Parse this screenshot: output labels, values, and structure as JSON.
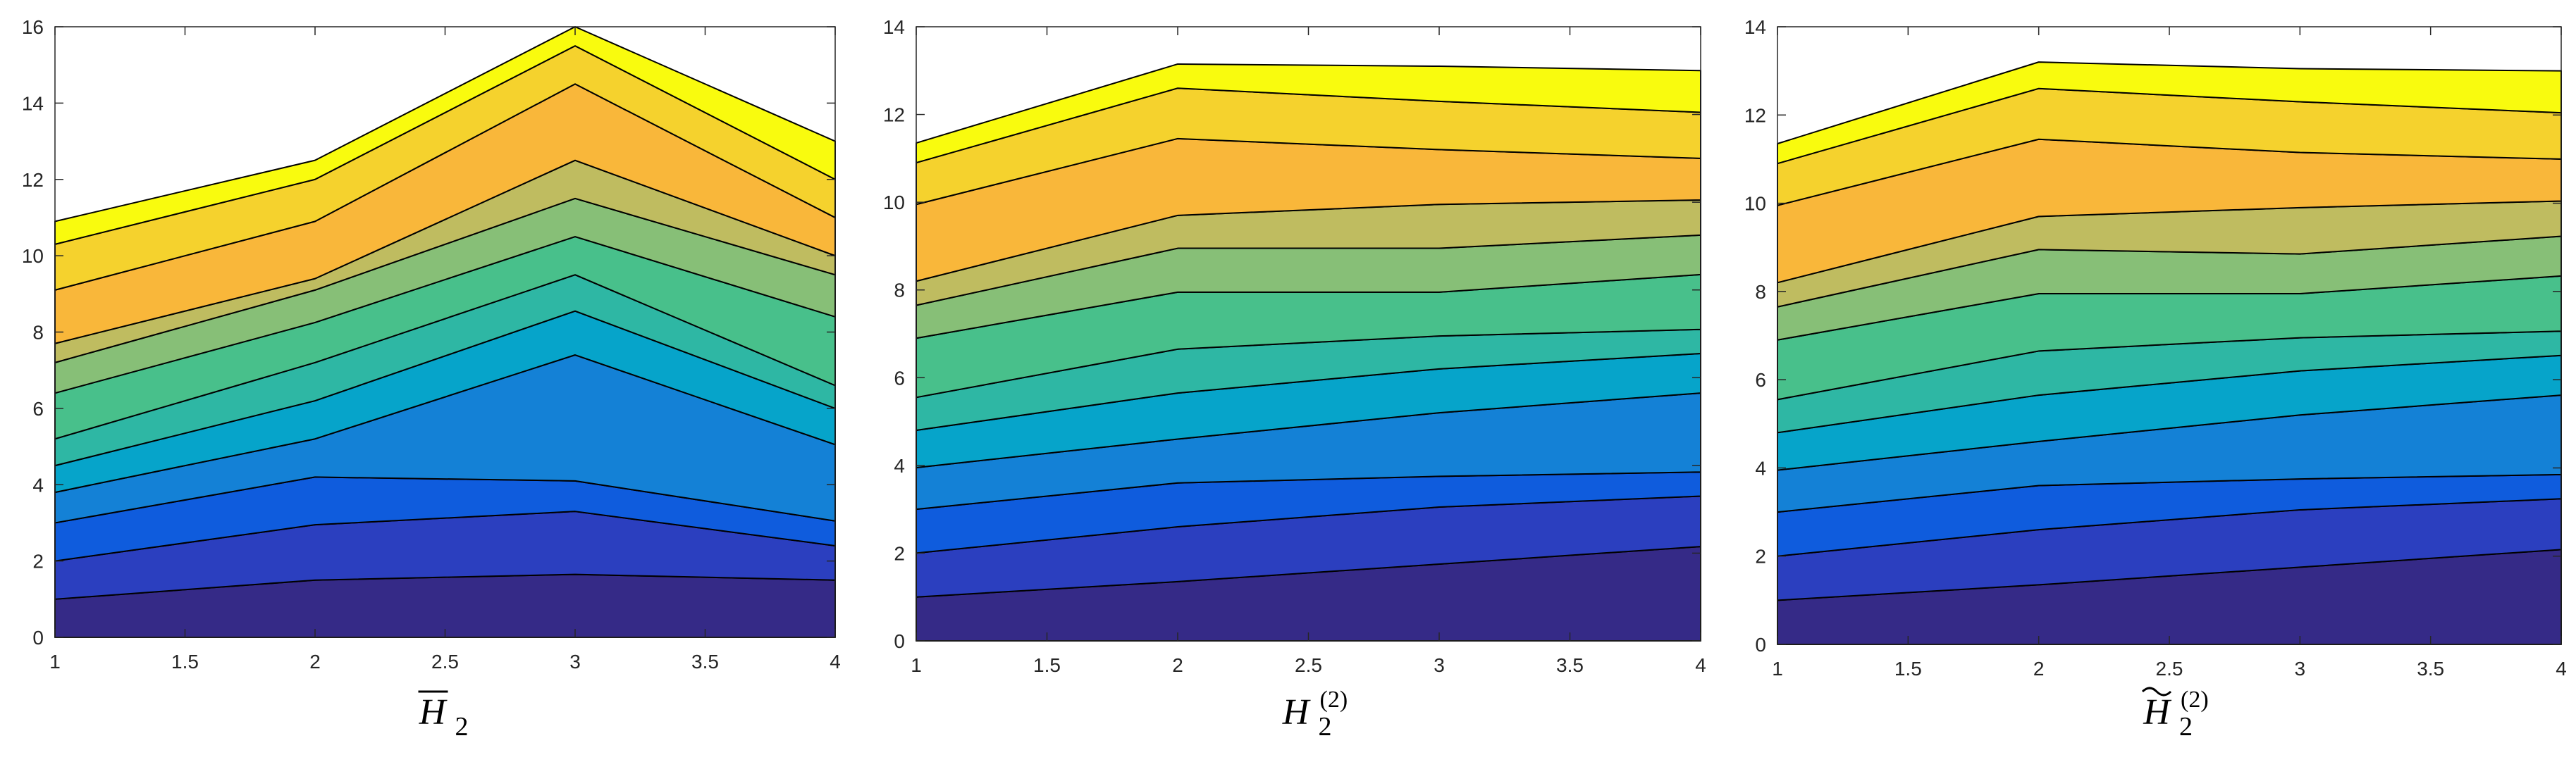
{
  "chart_data": [
    {
      "type": "area",
      "stacked": true,
      "xlabel": "H̄₂",
      "x": [
        1,
        2,
        3,
        4
      ],
      "xlim": [
        1,
        4
      ],
      "ylim": [
        0,
        16
      ],
      "xticks": [
        "1",
        "1.5",
        "2",
        "2.5",
        "3",
        "3.5",
        "4"
      ],
      "yticks": [
        "0",
        "2",
        "4",
        "6",
        "8",
        "10",
        "12",
        "14",
        "16"
      ],
      "grid": false,
      "legend": "none",
      "cumulative_boundaries": [
        [
          1.0,
          1.5,
          1.65,
          1.5
        ],
        [
          2.0,
          2.95,
          3.3,
          2.4
        ],
        [
          3.0,
          4.2,
          4.1,
          3.05
        ],
        [
          3.8,
          5.2,
          7.4,
          5.05
        ],
        [
          4.5,
          6.2,
          8.55,
          6.0
        ],
        [
          5.2,
          7.2,
          9.5,
          6.6
        ],
        [
          6.4,
          8.25,
          10.5,
          8.4
        ],
        [
          7.2,
          9.1,
          11.5,
          9.5
        ],
        [
          7.7,
          9.4,
          12.5,
          10.0
        ],
        [
          9.1,
          10.9,
          14.5,
          11.0
        ],
        [
          10.3,
          12.0,
          15.5,
          12.0
        ],
        [
          10.9,
          12.5,
          16.0,
          13.0
        ]
      ],
      "colors": [
        "#352a87",
        "#2b3fbf",
        "#0f5cdd",
        "#1481d6",
        "#06a4ca",
        "#2eb7a4",
        "#48c08b",
        "#87bf77",
        "#bfbc60",
        "#f9b73a",
        "#f5d22d",
        "#f9fb0e"
      ]
    },
    {
      "type": "area",
      "stacked": true,
      "xlabel": "H₂⁽²⁾",
      "x": [
        1,
        2,
        3,
        4
      ],
      "xlim": [
        1,
        4
      ],
      "ylim": [
        0,
        14
      ],
      "xticks": [
        "1",
        "1.5",
        "2",
        "2.5",
        "3",
        "3.5",
        "4"
      ],
      "yticks": [
        "0",
        "2",
        "4",
        "6",
        "8",
        "10",
        "12",
        "14"
      ],
      "grid": false,
      "legend": "none",
      "cumulative_boundaries": [
        [
          1.0,
          1.35,
          1.75,
          2.15
        ],
        [
          2.0,
          2.6,
          3.05,
          3.3
        ],
        [
          3.0,
          3.6,
          3.75,
          3.85
        ],
        [
          3.95,
          4.6,
          5.2,
          5.65
        ],
        [
          4.8,
          5.65,
          6.2,
          6.55
        ],
        [
          5.55,
          6.65,
          6.95,
          7.1
        ],
        [
          6.9,
          7.95,
          7.95,
          8.35
        ],
        [
          7.65,
          8.95,
          8.95,
          9.25
        ],
        [
          8.2,
          9.7,
          9.95,
          10.05
        ],
        [
          9.95,
          11.45,
          11.2,
          11.0
        ],
        [
          10.9,
          12.6,
          12.3,
          12.05
        ],
        [
          11.35,
          13.15,
          13.1,
          13.0
        ]
      ],
      "colors": [
        "#352a87",
        "#2b3fbf",
        "#0f5cdd",
        "#1481d6",
        "#06a4ca",
        "#2eb7a4",
        "#48c08b",
        "#87bf77",
        "#bfbc60",
        "#f9b73a",
        "#f5d22d",
        "#f9fb0e"
      ]
    },
    {
      "type": "area",
      "stacked": true,
      "xlabel": "H̃₂⁽²⁾",
      "x": [
        1,
        2,
        3,
        4
      ],
      "xlim": [
        1,
        4
      ],
      "ylim": [
        0,
        14
      ],
      "xticks": [
        "1",
        "1.5",
        "2",
        "2.5",
        "3",
        "3.5",
        "4"
      ],
      "yticks": [
        "0",
        "2",
        "4",
        "6",
        "8",
        "10",
        "12",
        "14"
      ],
      "grid": false,
      "legend": "none",
      "cumulative_boundaries": [
        [
          1.0,
          1.35,
          1.75,
          2.15
        ],
        [
          2.0,
          2.6,
          3.05,
          3.3
        ],
        [
          3.0,
          3.6,
          3.75,
          3.85
        ],
        [
          3.95,
          4.6,
          5.2,
          5.65
        ],
        [
          4.8,
          5.65,
          6.2,
          6.55
        ],
        [
          5.55,
          6.65,
          6.95,
          7.1
        ],
        [
          6.9,
          7.95,
          7.95,
          8.35
        ],
        [
          7.65,
          8.95,
          8.85,
          9.25
        ],
        [
          8.2,
          9.7,
          9.9,
          10.05
        ],
        [
          9.95,
          11.45,
          11.15,
          11.0
        ],
        [
          10.9,
          12.6,
          12.3,
          12.05
        ],
        [
          11.35,
          13.2,
          13.05,
          13.0
        ]
      ],
      "colors": [
        "#352a87",
        "#2b3fbf",
        "#0f5cdd",
        "#1481d6",
        "#06a4ca",
        "#2eb7a4",
        "#48c08b",
        "#87bf77",
        "#bfbc60",
        "#f9b73a",
        "#f5d22d",
        "#f9fb0e"
      ]
    }
  ]
}
